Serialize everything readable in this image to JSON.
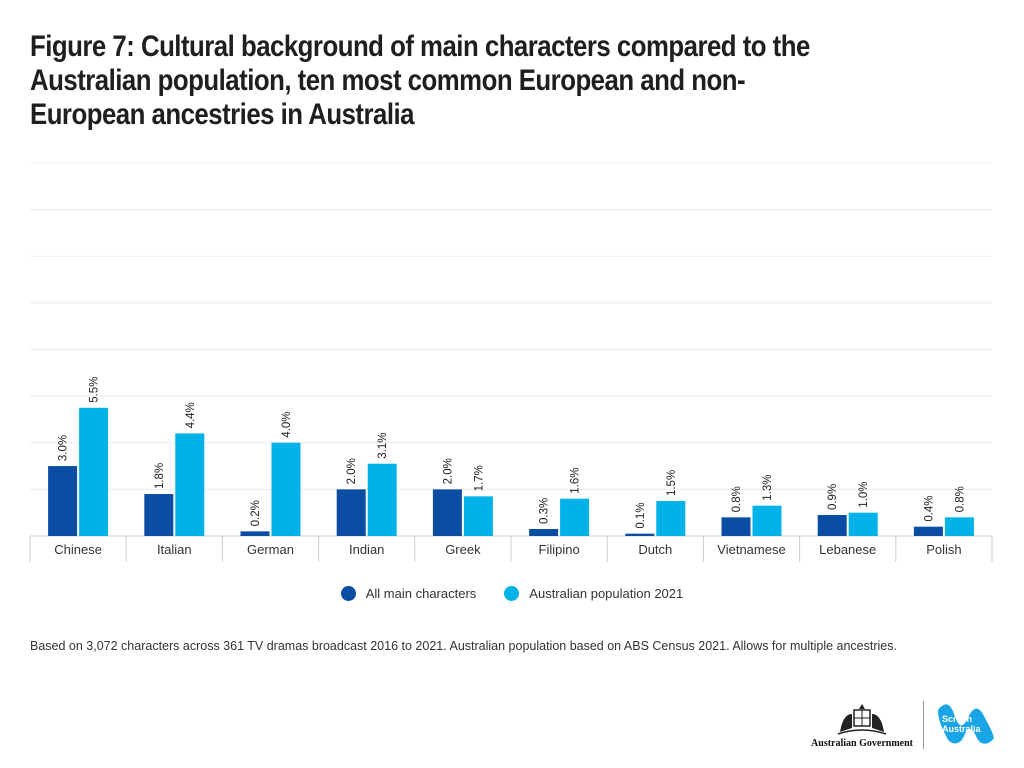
{
  "title": "Figure 7: Cultural background of main characters compared to the Australian population, ten most common European and non-European ancestries in Australia",
  "footnote": "Based on 3,072 characters across 361 TV dramas broadcast 2016 to 2021. Australian population based on ABS Census 2021. Allows for multiple ancestries.",
  "logos": {
    "government": "Australian Government",
    "screen_australia": "Screen Australia"
  },
  "colors": {
    "series1": "#0a4da2",
    "series2": "#00b2e8",
    "grid": "#ececec",
    "axis": "#cccccc"
  },
  "chart_data": {
    "type": "bar",
    "categories": [
      "Chinese",
      "Italian",
      "German",
      "Indian",
      "Greek",
      "Filipino",
      "Dutch",
      "Vietnamese",
      "Lebanese",
      "Polish"
    ],
    "series": [
      {
        "name": "All main characters",
        "values": [
          3.0,
          1.8,
          0.2,
          2.0,
          2.0,
          0.3,
          0.1,
          0.8,
          0.9,
          0.4
        ],
        "labels": [
          "3.0%",
          "1.8%",
          "0.2%",
          "2.0%",
          "2.0%",
          "0.3%",
          "0.1%",
          "0.8%",
          "0.9%",
          "0.4%"
        ]
      },
      {
        "name": "Australian population 2021",
        "values": [
          5.5,
          4.4,
          4.0,
          3.1,
          1.7,
          1.6,
          1.5,
          1.3,
          1.0,
          0.8
        ],
        "labels": [
          "5.5%",
          "4.4%",
          "4.0%",
          "3.1%",
          "1.7%",
          "1.6%",
          "1.5%",
          "1.3%",
          "1.0%",
          "0.8%"
        ]
      }
    ],
    "ylim": [
      0,
      16
    ],
    "grid": true,
    "legend": "bottom-center"
  }
}
